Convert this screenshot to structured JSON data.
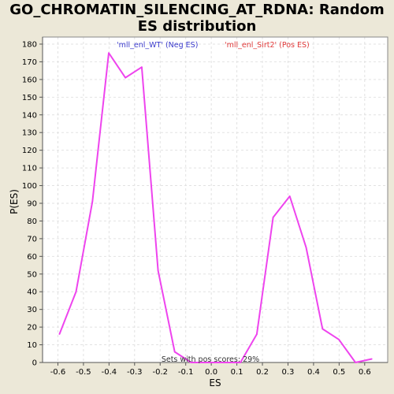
{
  "page": {
    "title_line1": "GO_CHROMATIN_SILENCING_AT_RDNA: Random",
    "title_line2": "ES distribution"
  },
  "chart_data": {
    "type": "line",
    "title": "GO_CHROMATIN_SILENCING_AT_RDNA: Random ES distribution",
    "xlabel": "ES",
    "ylabel": "P(ES)",
    "xlim": [
      -0.66,
      0.69
    ],
    "ylim": [
      0,
      184
    ],
    "x_ticks": [
      -0.6,
      -0.5,
      -0.4,
      -0.3,
      -0.2,
      -0.1,
      0.0,
      0.1,
      0.2,
      0.3,
      0.4,
      0.5,
      0.6
    ],
    "y_ticks": [
      0,
      10,
      20,
      30,
      40,
      50,
      60,
      70,
      80,
      90,
      100,
      110,
      120,
      130,
      140,
      150,
      160,
      170,
      180
    ],
    "grid": true,
    "legend": {
      "neg_label": "'mll_enl_WT' (Neg ES)",
      "pos_label": "'mll_enl_Sirt2' (Pos ES)",
      "neg_color": "#3a3acc",
      "pos_color": "#e03a3a"
    },
    "annotation": "Sets with pos scores: 29%",
    "series": [
      {
        "color": "#ee44ee",
        "x": [
          -0.594,
          -0.529,
          -0.465,
          -0.401,
          -0.336,
          -0.272,
          -0.208,
          -0.143,
          -0.079,
          -0.015,
          0.049,
          0.114,
          0.178,
          0.242,
          0.307,
          0.371,
          0.435,
          0.499,
          0.564,
          0.628
        ],
        "y": [
          16,
          40,
          91,
          175,
          161,
          167,
          52,
          6,
          0,
          0,
          0,
          0,
          16,
          82,
          94,
          65,
          19,
          13,
          0,
          2
        ]
      }
    ]
  }
}
